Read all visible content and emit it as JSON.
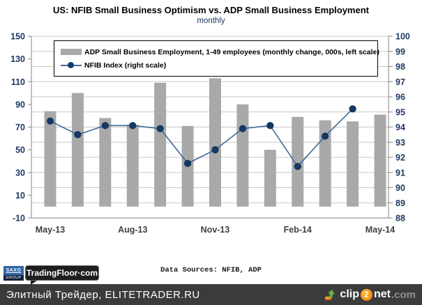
{
  "header": {
    "title": "US: NFIB Small Business Optimism vs. ADP Small Business Employment",
    "subtitle": "monthly"
  },
  "chart_data": {
    "type": "combo-bar-line",
    "categories": [
      "May-13",
      "Jun-13",
      "Jul-13",
      "Aug-13",
      "Sep-13",
      "Oct-13",
      "Nov-13",
      "Dec-13",
      "Jan-14",
      "Feb-14",
      "Mar-14",
      "Apr-14",
      "May-14"
    ],
    "series": [
      {
        "name": "ADP Small Business Employment",
        "type": "bar",
        "axis": "left",
        "legend_label": "ADP Small Business Employment, 1-49 employees (monthly change, 000s, left scale)",
        "values": [
          84,
          100,
          78,
          72,
          109,
          71,
          113,
          90,
          50,
          79,
          76,
          75,
          81
        ]
      },
      {
        "name": "NFIB Index",
        "type": "line",
        "axis": "right",
        "legend_label": "NFIB Index (right scale)",
        "values": [
          94.4,
          93.5,
          94.1,
          94.1,
          93.9,
          91.6,
          92.5,
          93.9,
          94.1,
          91.4,
          93.4,
          95.2,
          null
        ]
      }
    ],
    "left_axis": {
      "min": -10,
      "max": 150,
      "tick_step": 20
    },
    "right_axis": {
      "min": 88,
      "max": 100,
      "tick_step": 1
    },
    "x_tick_indices": [
      0,
      3,
      6,
      9,
      12
    ],
    "x_tick_labels": [
      "May-13",
      "Aug-13",
      "Nov-13",
      "Feb-14",
      "May-14"
    ],
    "legend_position": "top-left",
    "grid": "horizontal",
    "colors": {
      "bar": "#a9a9a9",
      "line": "#3d6a99",
      "marker": "#143a66",
      "gridline": "#c8c8c8",
      "axis_line": "#999999",
      "y_label": "#1f3864",
      "x_label": "#404040"
    }
  },
  "footer": {
    "data_sources": "Data Sources: NFIB, ADP",
    "saxo_top": "SAXO",
    "saxo_bottom": "GROUP",
    "tradingfloor": "TradingFloor·com"
  },
  "bottom_bar": {
    "text": "Элитный Трейдер, ELITETRADER.RU",
    "clip2net": {
      "part1": "clip",
      "part2": "2",
      "part3": "net",
      "part4": ".com"
    }
  }
}
